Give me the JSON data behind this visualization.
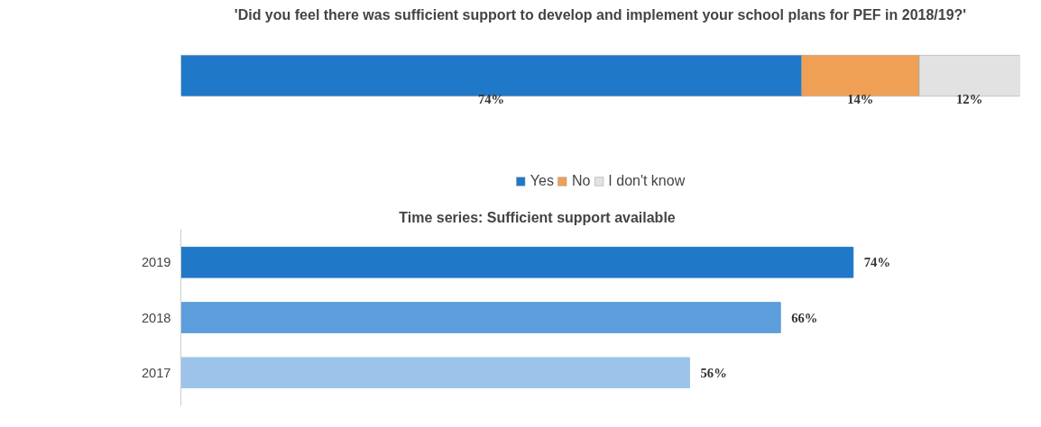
{
  "chart_data": [
    {
      "type": "bar",
      "orientation": "horizontal",
      "stacked": true,
      "title": "'Did you feel there was sufficient support to develop and implement your school plans for PEF in 2018/19?'",
      "categories": [
        null
      ],
      "xlim": [
        0,
        100
      ],
      "tick_labels": false,
      "grid": false,
      "legend": "bottom",
      "series": [
        {
          "name": "Yes",
          "color": "#1f78c8",
          "values": [
            74
          ],
          "value_labels": [
            "74%"
          ]
        },
        {
          "name": "No",
          "color": "#f0a055",
          "values": [
            14
          ],
          "value_labels": [
            "14%"
          ]
        },
        {
          "name": "I don't know",
          "color": "#e2e2e2",
          "values": [
            12
          ],
          "value_labels": [
            "12%"
          ]
        }
      ]
    },
    {
      "type": "bar",
      "orientation": "horizontal",
      "title": "Time series: Sufficient support available",
      "categories": [
        "2019",
        "2018",
        "2017"
      ],
      "values": [
        74,
        66,
        56
      ],
      "colors": [
        "#1f78c8",
        "#5c9edb",
        "#9cc4ea"
      ],
      "value_labels": [
        "74%",
        "66%",
        "56%"
      ],
      "tick_labels": "y",
      "grid": false,
      "legend": false
    }
  ]
}
